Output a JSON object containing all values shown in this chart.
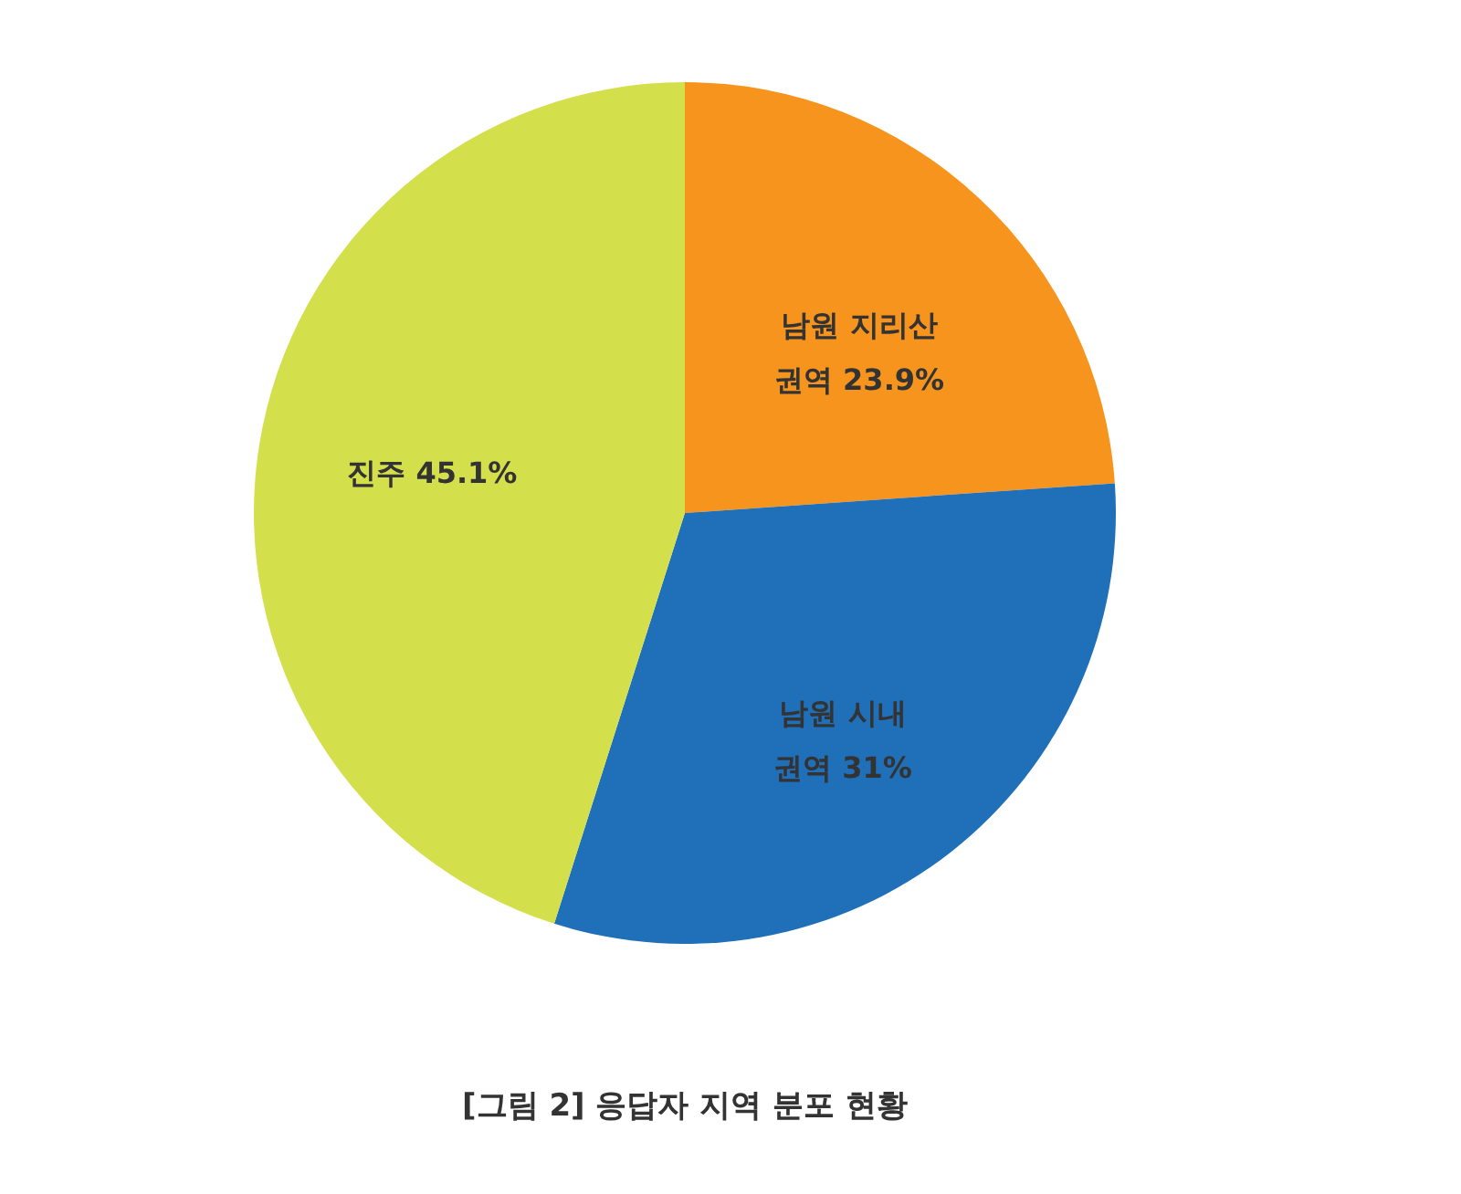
{
  "chart_data": {
    "type": "pie",
    "title": "[그림 2] 응답자 지역 분포 현황",
    "categories": [
      "남원 지리산 권역",
      "남원 시내 권역",
      "진주"
    ],
    "values": [
      23.9,
      31,
      45.1
    ],
    "value_labels": [
      "23.9%",
      "31%",
      "45.1%"
    ],
    "colors": [
      "#f7941d",
      "#1f70b8",
      "#d4df4c"
    ]
  }
}
